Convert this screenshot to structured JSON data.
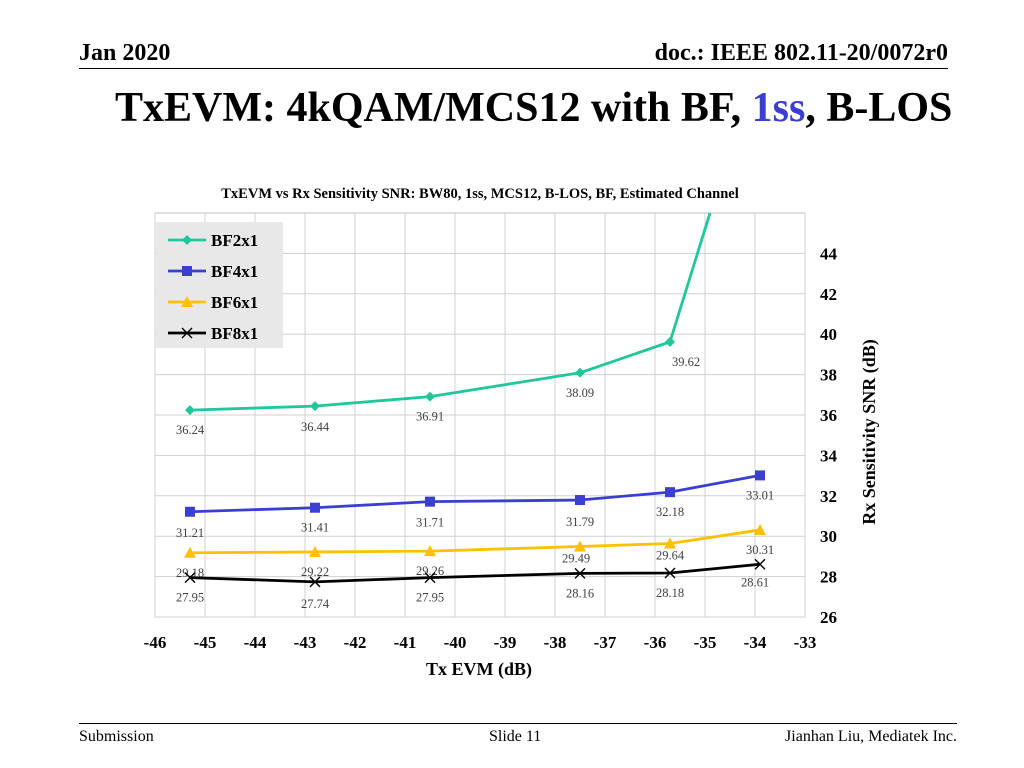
{
  "header": {
    "date": "Jan 2020",
    "doc": "doc.: IEEE 802.11-20/0072r0"
  },
  "slide": {
    "title_prefix": "TxEVM: 4kQAM/MCS12 with BF, ",
    "title_accent": "1ss",
    "title_suffix": ", B-LOS",
    "accent_color": "#3b3fcf"
  },
  "footer": {
    "left": "Submission",
    "center": "Slide 11",
    "right": "Jianhan Liu, Mediatek Inc."
  },
  "chart_data": {
    "type": "line",
    "title": "TxEVM vs Rx Sensitivity SNR: BW80, 1ss, MCS12, B-LOS, BF, Estimated Channel",
    "xlabel": "Tx EVM (dB)",
    "ylabel": "Rx Sensitivity SNR (dB)",
    "xlim": [
      -46,
      -33
    ],
    "ylim": [
      26,
      46
    ],
    "xticks": [
      -46,
      -45,
      -44,
      -43,
      -42,
      -41,
      -40,
      -39,
      -38,
      -37,
      -36,
      -35,
      -34,
      -33
    ],
    "yticks": [
      26,
      28,
      30,
      32,
      34,
      36,
      38,
      40,
      42,
      44
    ],
    "grid": true,
    "legend_position": "top-left",
    "series": [
      {
        "name": "BF2x1",
        "color": "#1fc79a",
        "marker": "diamond",
        "x": [
          -45.3,
          -42.8,
          -40.5,
          -37.5,
          -35.7,
          -34.9
        ],
        "y": [
          36.24,
          36.44,
          36.91,
          38.09,
          39.62,
          46.0
        ],
        "labels": [
          "36.24",
          "36.44",
          "36.91",
          "38.09",
          "39.62",
          ""
        ],
        "markers": [
          true,
          true,
          true,
          true,
          true,
          false
        ]
      },
      {
        "name": "BF4x1",
        "color": "#3b3fcf",
        "marker": "square",
        "x": [
          -45.3,
          -42.8,
          -40.5,
          -37.5,
          -35.7,
          -33.9
        ],
        "y": [
          31.21,
          31.41,
          31.71,
          31.79,
          32.18,
          33.01
        ],
        "labels": [
          "31.21",
          "31.41",
          "31.71",
          "31.79",
          "32.18",
          "33.01"
        ],
        "markers": [
          true,
          true,
          true,
          true,
          true,
          true
        ]
      },
      {
        "name": "BF6x1",
        "color": "#ffc000",
        "marker": "triangle",
        "x": [
          -45.3,
          -42.8,
          -40.5,
          -37.5,
          -35.7,
          -33.9
        ],
        "y": [
          29.18,
          29.22,
          29.26,
          29.49,
          29.64,
          30.31
        ],
        "labels": [
          "29.18",
          "29.22",
          "29.26",
          "29.49",
          "29.64",
          "30.31"
        ],
        "markers": [
          true,
          true,
          true,
          true,
          true,
          true
        ]
      },
      {
        "name": "BF8x1",
        "color": "#000000",
        "marker": "x",
        "x": [
          -45.3,
          -42.8,
          -40.5,
          -37.5,
          -35.7,
          -33.9
        ],
        "y": [
          27.95,
          27.74,
          27.95,
          28.16,
          28.18,
          28.61
        ],
        "labels": [
          "27.95",
          "27.74",
          "27.95",
          "28.16",
          "28.18",
          "28.61"
        ],
        "markers": [
          true,
          true,
          true,
          true,
          true,
          true
        ]
      }
    ]
  }
}
